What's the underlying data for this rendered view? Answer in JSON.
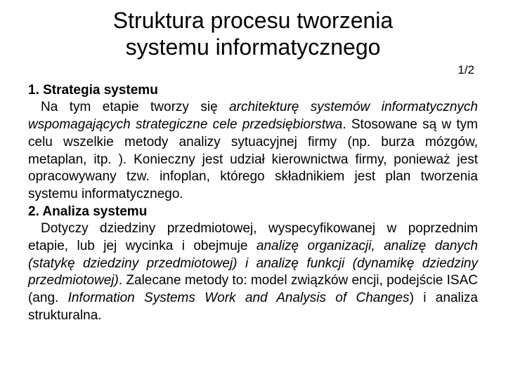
{
  "title_line1": "Struktura procesu tworzenia",
  "title_line2": "systemu informatycznego",
  "page_number": "1/2",
  "section1_heading": "1. Strategia systemu",
  "section1_text1": "Na tym etapie tworzy się ",
  "section1_italic1": "architekturę systemów informatycznych wspomagających strategiczne cele przedsiębiorstwa",
  "section1_text2": ". Stosowane są w tym celu wszelkie metody analizy sytuacyjnej firmy (np. burza mózgów, metaplan, itp. ). Konieczny jest udział kierownictwa firmy, ponieważ jest opracowywany tzw. infoplan, którego składnikiem jest plan tworzenia systemu informatycznego.",
  "section2_heading": "2. Analiza systemu",
  "section2_text1": "Dotyczy dziedziny przedmiotowej, wyspecyfikowanej w poprzednim etapie, lub jej wycinka i obejmuje ",
  "section2_italic1": "analizę organizacji, analizę danych (statykę dziedziny przedmiotowej) i analizę funkcji (dynamikę dziedziny przedmiotowej)",
  "section2_text2": ". Zalecane metody to: model związków encji, podejście ISAC (ang. ",
  "section2_italic2": "Information Systems Work and Analysis of Changes",
  "section2_text3": ") i analiza strukturalna."
}
